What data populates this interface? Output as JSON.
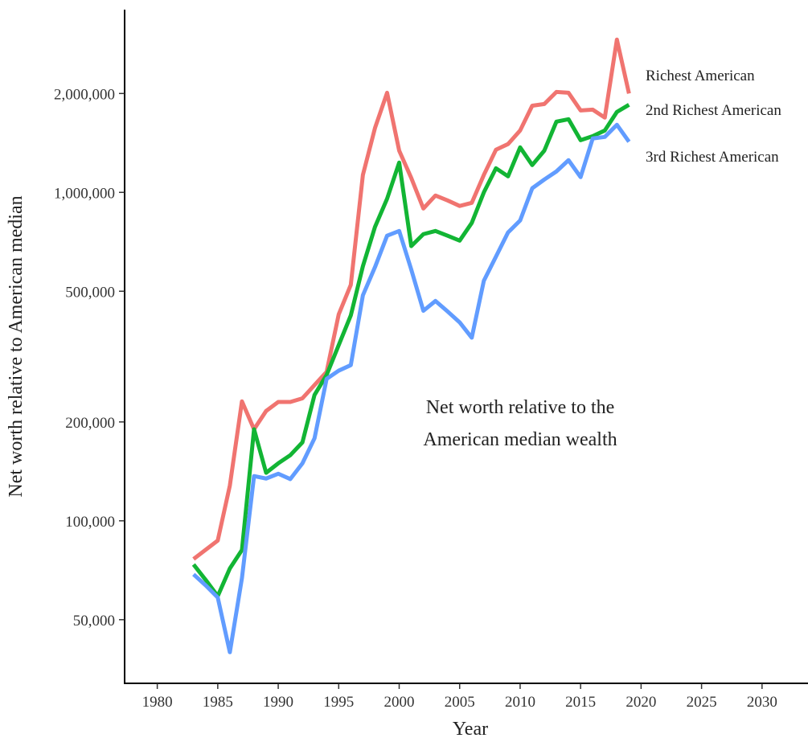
{
  "chart_data": {
    "type": "line",
    "xlabel": "Year",
    "ylabel": "Net worth relative to American median",
    "annotation": [
      "Net worth relative to the",
      "American median wealth"
    ],
    "log_y": true,
    "grid": false,
    "legend": "right",
    "xlim": [
      1977.3,
      2033.8
    ],
    "ylim": [
      32000,
      3600000
    ],
    "xticks": [
      1980,
      1985,
      1990,
      1995,
      2000,
      2005,
      2010,
      2015,
      2020,
      2025,
      2030
    ],
    "yticks": [
      {
        "value": 50000,
        "label": "50,000"
      },
      {
        "value": 100000,
        "label": "100,000"
      },
      {
        "value": 200000,
        "label": "200,000"
      },
      {
        "value": 500000,
        "label": "500,000"
      },
      {
        "value": 1000000,
        "label": "1,000,000"
      },
      {
        "value": 2000000,
        "label": "2,000,000"
      }
    ],
    "x": [
      1983,
      1984,
      1985,
      1986,
      1987,
      1988,
      1989,
      1990,
      1991,
      1992,
      1993,
      1994,
      1995,
      1996,
      1997,
      1998,
      1999,
      2000,
      2001,
      2002,
      2003,
      2004,
      2005,
      2006,
      2007,
      2008,
      2009,
      2010,
      2011,
      2012,
      2013,
      2014,
      2015,
      2016,
      2017,
      2018,
      2019
    ],
    "series": [
      {
        "name": "Richest American",
        "color": "#f07470",
        "values": [
          76500,
          81600,
          87100,
          128000,
          231000,
          190000,
          216000,
          230000,
          230000,
          236000,
          259000,
          284000,
          425000,
          523000,
          1130000,
          1570000,
          2010000,
          1340000,
          1106000,
          893000,
          978000,
          945000,
          909000,
          929000,
          1130000,
          1348000,
          1403000,
          1543000,
          1836000,
          1858000,
          2022000,
          2010000,
          1776000,
          1786000,
          1689000,
          2918000,
          2000000
        ]
      },
      {
        "name": "2nd Richest American",
        "color": "#12b534",
        "values": [
          73600,
          66100,
          59000,
          71600,
          81500,
          190000,
          140000,
          149600,
          158400,
          173300,
          241600,
          278000,
          342700,
          422000,
          596000,
          785000,
          956000,
          1232000,
          686000,
          746000,
          763000,
          738000,
          713000,
          807000,
          1000000,
          1184000,
          1119000,
          1371000,
          1211000,
          1340000,
          1642000,
          1670000,
          1442000,
          1483000,
          1543000,
          1757000,
          1848000
        ]
      },
      {
        "name": "3rd Richest American",
        "color": "#619cff",
        "values": [
          68700,
          63600,
          58400,
          39800,
          66900,
          136800,
          134500,
          139100,
          134000,
          149600,
          178300,
          270500,
          286500,
          297800,
          486000,
          592000,
          738000,
          763000,
          582000,
          436000,
          467000,
          434000,
          402000,
          361000,
          538000,
          637000,
          755000,
          821000,
          1029000,
          1094000,
          1158000,
          1253000,
          1113000,
          1459000,
          1475000,
          1606000,
          1426000
        ]
      }
    ]
  }
}
